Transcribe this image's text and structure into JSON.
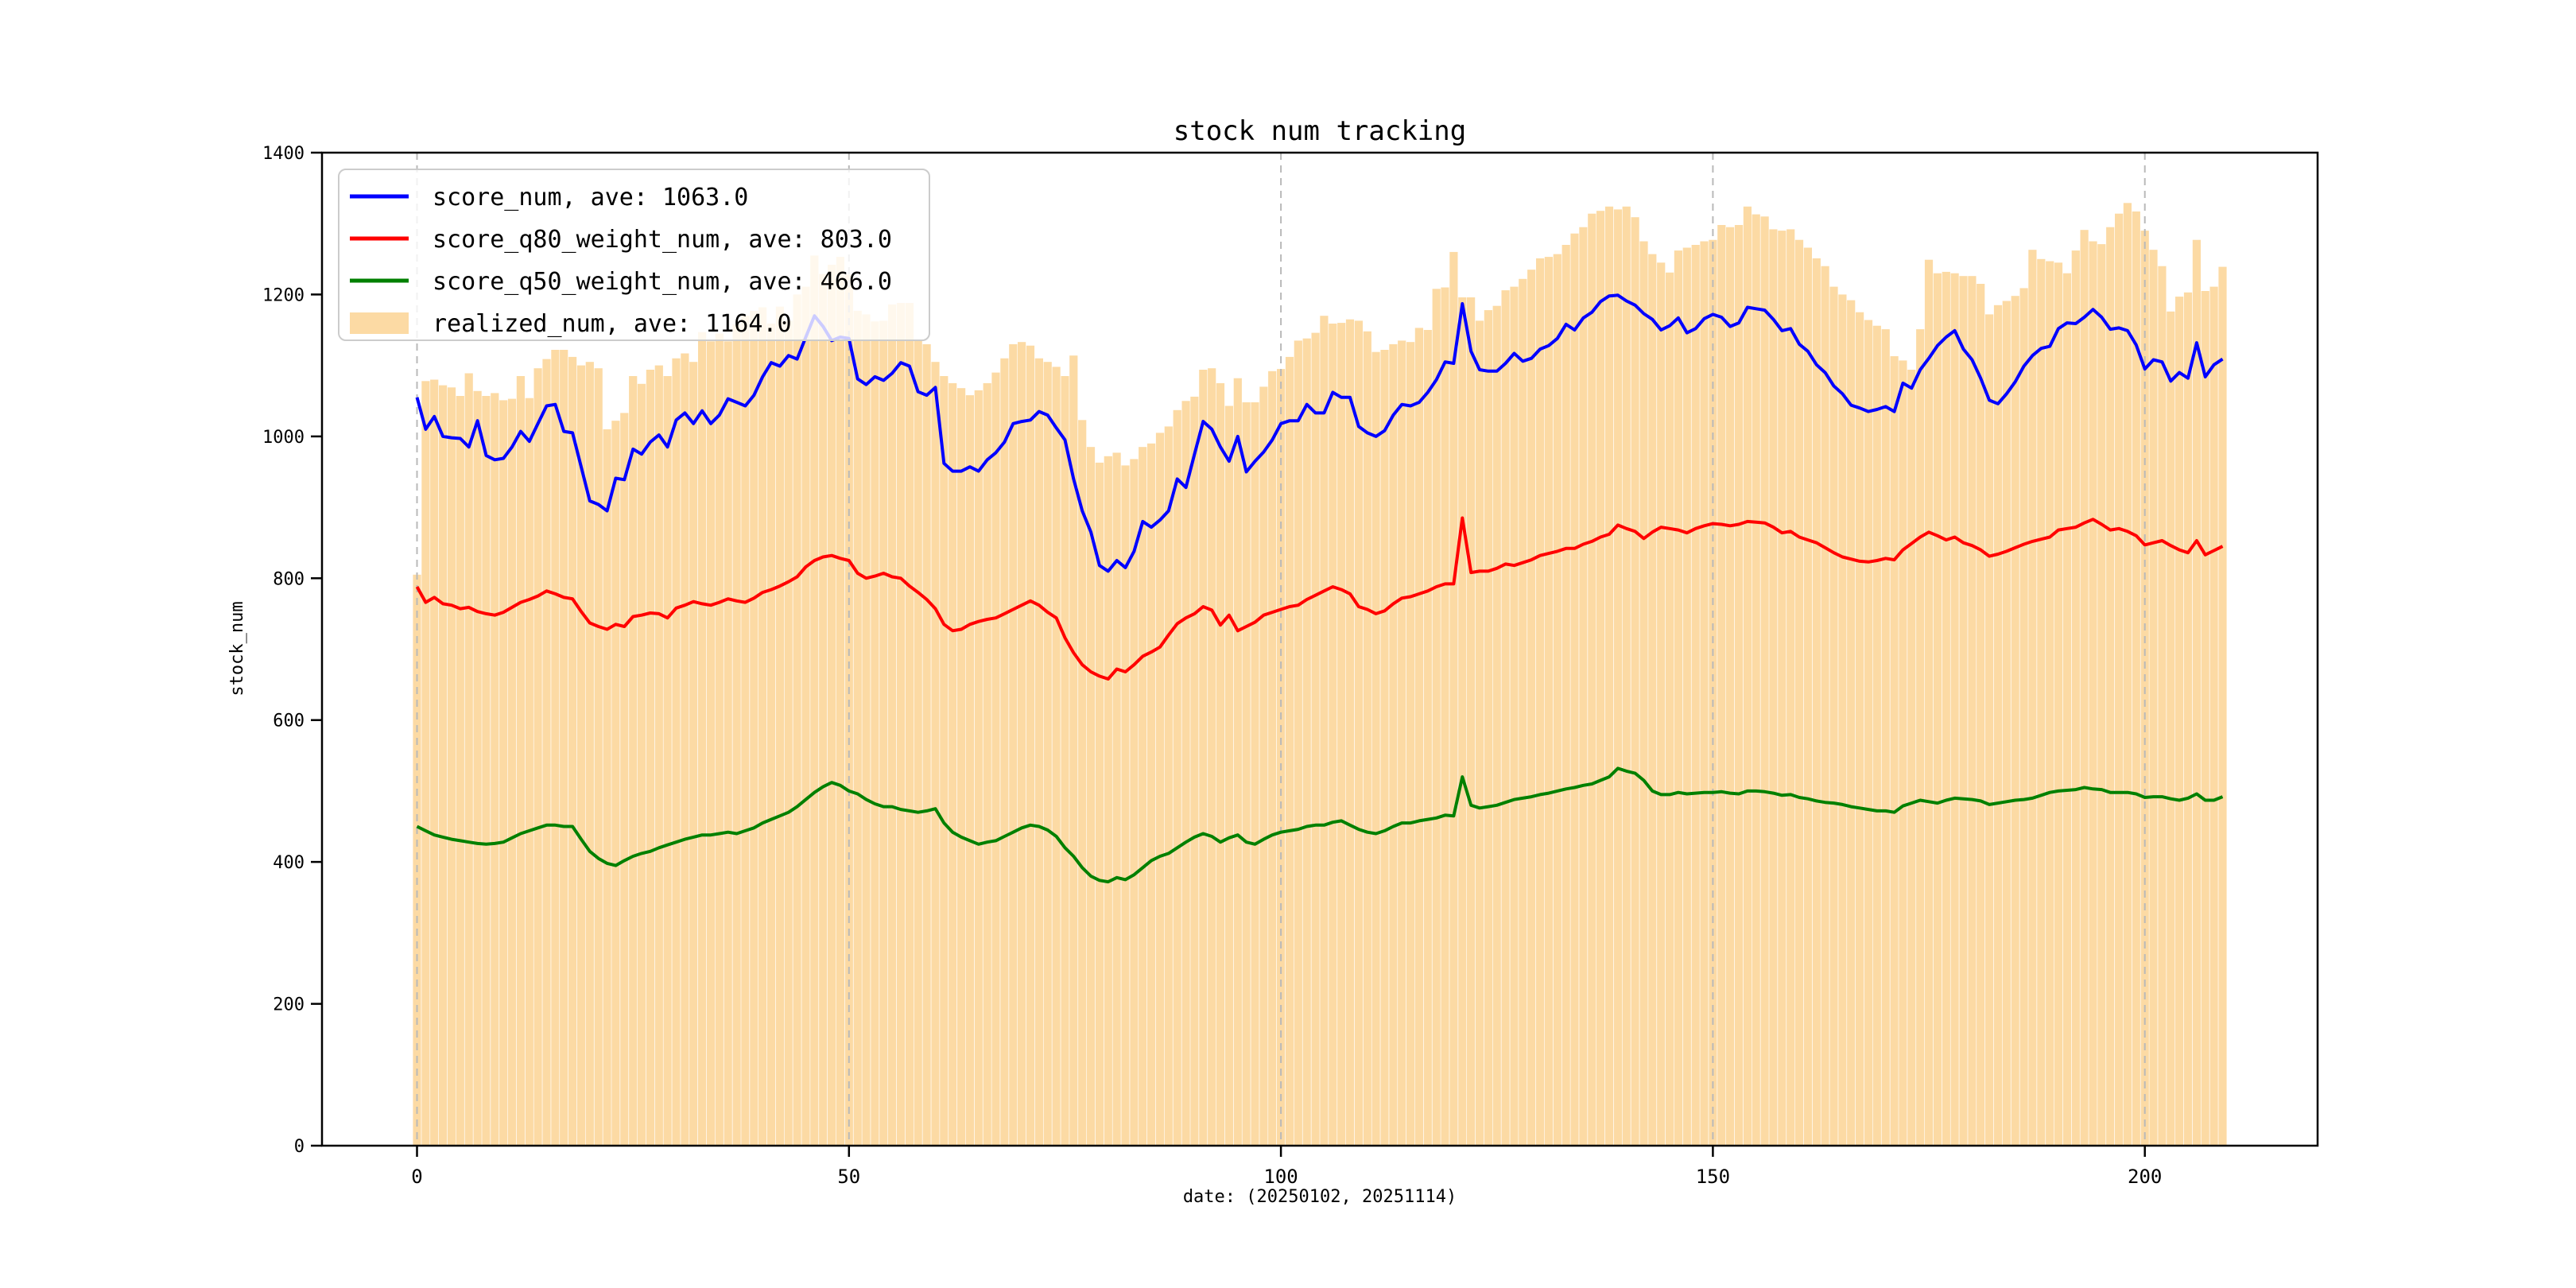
{
  "title": "stock num tracking",
  "chart_data": {
    "type": "line",
    "title": "stock num tracking",
    "xlabel": "date: (20250102, 20251114)",
    "ylabel": "stock_num",
    "xlim": [
      -11,
      220
    ],
    "ylim": [
      0,
      1400
    ],
    "xticks": [
      0,
      50,
      100,
      150,
      200
    ],
    "yticks": [
      0,
      200,
      400,
      600,
      800,
      1000,
      1200,
      1400
    ],
    "n_points": 210,
    "grid": "vertical-dashed",
    "grid_color": "#b9b9b9",
    "legend_position": "upper-left",
    "background": "#ffffff",
    "series": [
      {
        "name": "score_num",
        "legend_label": "score_num, ave: 1063.0",
        "ave": 1063.0,
        "type": "line",
        "color": "#0000ff",
        "values": [
          1055,
          1010,
          1028,
          1000,
          998,
          997,
          985,
          1022,
          973,
          967,
          969,
          985,
          1007,
          993,
          1018,
          1043,
          1045,
          1007,
          1005,
          957,
          909,
          904,
          895,
          941,
          939,
          982,
          975,
          992,
          1002,
          985,
          1023,
          1033,
          1018,
          1036,
          1018,
          1030,
          1053,
          1048,
          1043,
          1058,
          1084,
          1104,
          1099,
          1114,
          1109,
          1140,
          1170,
          1155,
          1135,
          1140,
          1138,
          1081,
          1073,
          1084,
          1079,
          1089,
          1104,
          1099,
          1063,
          1058,
          1069,
          962,
          951,
          951,
          957,
          951,
          967,
          977,
          992,
          1018,
          1021,
          1023,
          1035,
          1030,
          1012,
          995,
          940,
          895,
          865,
          818,
          810,
          825,
          815,
          838,
          880,
          872,
          882,
          895,
          940,
          928,
          975,
          1021,
          1010,
          985,
          965,
          1000,
          950,
          965,
          978,
          995,
          1018,
          1022,
          1022,
          1045,
          1033,
          1033,
          1062,
          1055,
          1055,
          1014,
          1005,
          1000,
          1008,
          1030,
          1045,
          1043,
          1048,
          1062,
          1080,
          1105,
          1103,
          1187,
          1120,
          1094,
          1092,
          1092,
          1103,
          1117,
          1106,
          1110,
          1123,
          1128,
          1138,
          1158,
          1150,
          1167,
          1175,
          1190,
          1198,
          1199,
          1191,
          1185,
          1173,
          1165,
          1150,
          1156,
          1167,
          1146,
          1152,
          1166,
          1172,
          1168,
          1155,
          1160,
          1182,
          1180,
          1178,
          1165,
          1149,
          1152,
          1130,
          1120,
          1101,
          1090,
          1071,
          1060,
          1044,
          1040,
          1035,
          1038,
          1042,
          1035,
          1075,
          1068,
          1094,
          1110,
          1128,
          1140,
          1149,
          1123,
          1108,
          1082,
          1051,
          1046,
          1060,
          1077,
          1099,
          1114,
          1124,
          1127,
          1152,
          1160,
          1159,
          1168,
          1179,
          1168,
          1151,
          1153,
          1149,
          1129,
          1095,
          1108,
          1105,
          1078,
          1090,
          1082,
          1132,
          1084,
          1101,
          1109
        ]
      },
      {
        "name": "score_q80_weight_num",
        "legend_label": "score_q80_weight_num, ave: 803.0",
        "ave": 803.0,
        "type": "line",
        "color": "#ff0000",
        "values": [
          788,
          766,
          773,
          764,
          762,
          757,
          759,
          753,
          750,
          748,
          752,
          759,
          766,
          770,
          775,
          782,
          778,
          773,
          771,
          753,
          737,
          732,
          728,
          735,
          732,
          746,
          748,
          751,
          750,
          744,
          758,
          762,
          767,
          764,
          762,
          766,
          771,
          768,
          766,
          772,
          780,
          784,
          789,
          795,
          802,
          816,
          825,
          830,
          832,
          828,
          825,
          807,
          800,
          803,
          807,
          802,
          800,
          789,
          780,
          770,
          757,
          735,
          726,
          728,
          735,
          739,
          742,
          744,
          750,
          756,
          762,
          768,
          762,
          752,
          744,
          716,
          695,
          678,
          668,
          662,
          658,
          672,
          668,
          678,
          690,
          696,
          703,
          720,
          736,
          744,
          750,
          760,
          755,
          734,
          748,
          726,
          732,
          738,
          748,
          752,
          756,
          760,
          762,
          770,
          776,
          782,
          788,
          784,
          778,
          760,
          756,
          750,
          754,
          764,
          772,
          774,
          778,
          782,
          788,
          792,
          792,
          885,
          808,
          810,
          810,
          814,
          820,
          818,
          822,
          826,
          832,
          835,
          838,
          842,
          842,
          848,
          852,
          858,
          862,
          875,
          870,
          866,
          856,
          865,
          872,
          870,
          868,
          864,
          870,
          874,
          877,
          876,
          874,
          876,
          880,
          879,
          878,
          872,
          864,
          866,
          858,
          854,
          850,
          843,
          836,
          830,
          827,
          824,
          823,
          825,
          828,
          826,
          840,
          849,
          858,
          865,
          860,
          854,
          858,
          850,
          846,
          840,
          831,
          834,
          838,
          843,
          848,
          852,
          855,
          858,
          868,
          870,
          872,
          878,
          883,
          876,
          868,
          870,
          866,
          860,
          847,
          850,
          853,
          846,
          840,
          836,
          853,
          833,
          839,
          845
        ]
      },
      {
        "name": "score_q50_weight_num",
        "legend_label": "score_q50_weight_num, ave: 466.0",
        "ave": 466.0,
        "type": "line",
        "color": "#008000",
        "values": [
          450,
          444,
          438,
          435,
          432,
          430,
          428,
          426,
          425,
          426,
          428,
          434,
          440,
          444,
          448,
          452,
          452,
          450,
          450,
          432,
          415,
          405,
          398,
          395,
          402,
          408,
          412,
          415,
          420,
          424,
          428,
          432,
          435,
          438,
          438,
          440,
          442,
          440,
          444,
          448,
          455,
          460,
          465,
          470,
          478,
          488,
          498,
          506,
          512,
          508,
          500,
          496,
          488,
          482,
          478,
          478,
          474,
          472,
          470,
          472,
          475,
          455,
          442,
          435,
          430,
          425,
          428,
          430,
          436,
          442,
          448,
          452,
          450,
          445,
          436,
          420,
          408,
          392,
          380,
          374,
          372,
          378,
          375,
          382,
          392,
          402,
          408,
          412,
          420,
          428,
          435,
          440,
          436,
          428,
          434,
          438,
          428,
          425,
          432,
          438,
          442,
          444,
          446,
          450,
          452,
          452,
          456,
          458,
          452,
          446,
          442,
          440,
          444,
          450,
          455,
          455,
          458,
          460,
          462,
          466,
          465,
          520,
          480,
          476,
          478,
          480,
          484,
          488,
          490,
          492,
          495,
          497,
          500,
          503,
          505,
          508,
          510,
          515,
          520,
          532,
          528,
          525,
          515,
          500,
          495,
          495,
          498,
          496,
          497,
          498,
          498,
          499,
          497,
          496,
          500,
          500,
          499,
          497,
          494,
          495,
          491,
          489,
          486,
          484,
          483,
          481,
          478,
          476,
          474,
          472,
          472,
          470,
          479,
          483,
          487,
          485,
          483,
          487,
          490,
          489,
          488,
          486,
          481,
          483,
          485,
          487,
          488,
          490,
          494,
          498,
          500,
          501,
          502,
          505,
          503,
          502,
          498,
          498,
          498,
          496,
          491,
          492,
          492,
          489,
          487,
          490,
          496,
          487,
          487,
          492
        ]
      },
      {
        "name": "realized_num",
        "legend_label": "realized_num, ave: 1164.0",
        "ave": 1164.0,
        "type": "bar",
        "color": "#fcdaa4",
        "values": [
          805,
          1078,
          1080,
          1072,
          1069,
          1057,
          1089,
          1064,
          1057,
          1061,
          1051,
          1053,
          1085,
          1054,
          1096,
          1109,
          1122,
          1122,
          1112,
          1100,
          1105,
          1096,
          1010,
          1022,
          1033,
          1085,
          1074,
          1094,
          1100,
          1085,
          1110,
          1117,
          1105,
          1147,
          1134,
          1145,
          1134,
          1158,
          1170,
          1177,
          1182,
          1159,
          1183,
          1163,
          1200,
          1211,
          1255,
          1229,
          1242,
          1253,
          1228,
          1177,
          1172,
          1162,
          1163,
          1186,
          1188,
          1188,
          1135,
          1130,
          1105,
          1085,
          1075,
          1068,
          1058,
          1065,
          1075,
          1090,
          1110,
          1130,
          1133,
          1128,
          1110,
          1105,
          1098,
          1085,
          1114,
          1023,
          985,
          963,
          972,
          977,
          959,
          968,
          985,
          990,
          1005,
          1014,
          1037,
          1050,
          1056,
          1094,
          1096,
          1075,
          1043,
          1082,
          1048,
          1048,
          1070,
          1092,
          1095,
          1112,
          1135,
          1138,
          1146,
          1170,
          1159,
          1160,
          1165,
          1163,
          1148,
          1119,
          1122,
          1130,
          1135,
          1133,
          1153,
          1150,
          1208,
          1210,
          1260,
          1196,
          1196,
          1163,
          1178,
          1184,
          1206,
          1211,
          1222,
          1235,
          1251,
          1253,
          1257,
          1270,
          1286,
          1295,
          1314,
          1318,
          1324,
          1320,
          1324,
          1309,
          1275,
          1257,
          1245,
          1231,
          1262,
          1266,
          1270,
          1275,
          1277,
          1298,
          1295,
          1298,
          1324,
          1313,
          1310,
          1292,
          1290,
          1292,
          1277,
          1266,
          1251,
          1240,
          1211,
          1200,
          1192,
          1175,
          1164,
          1156,
          1151,
          1113,
          1107,
          1094,
          1151,
          1249,
          1230,
          1232,
          1230,
          1226,
          1226,
          1215,
          1172,
          1185,
          1191,
          1198,
          1209,
          1263,
          1250,
          1247,
          1245,
          1230,
          1262,
          1291,
          1275,
          1271,
          1295,
          1314,
          1329,
          1317,
          1290,
          1263,
          1240,
          1176,
          1197,
          1203,
          1277,
          1205,
          1211,
          1239
        ]
      }
    ],
    "legend": {
      "border_color": "#cccccc",
      "background": "rgba(255,255,255,0.8)"
    }
  }
}
